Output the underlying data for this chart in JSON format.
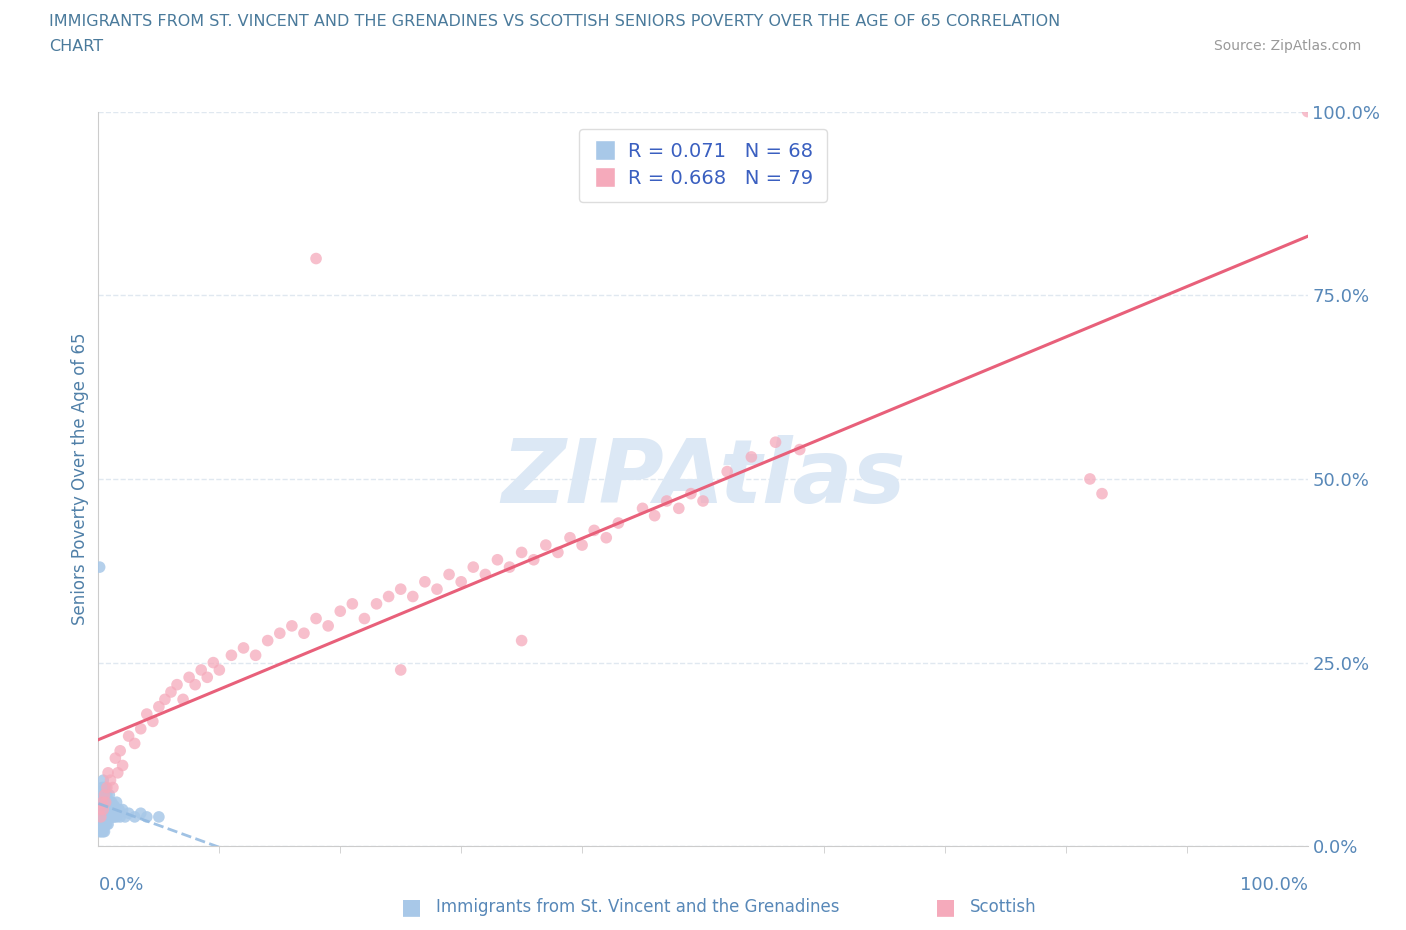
{
  "title_line1": "IMMIGRANTS FROM ST. VINCENT AND THE GRENADINES VS SCOTTISH SENIORS POVERTY OVER THE AGE OF 65 CORRELATION",
  "title_line2": "CHART",
  "source_text": "Source: ZipAtlas.com",
  "legend_label1": "Immigrants from St. Vincent and the Grenadines",
  "legend_label2": "Scottish",
  "R1": 0.071,
  "N1": 68,
  "R2": 0.668,
  "N2": 79,
  "color_blue": "#a8c8e8",
  "color_pink": "#f5aabb",
  "line_blue_color": "#90b8e0",
  "line_pink_color": "#e8607a",
  "watermark_color": "#dce8f5",
  "title_color": "#4a7a9b",
  "legend_text_color": "#3a5fc0",
  "axis_label_color": "#5080a8",
  "tick_label_color": "#5888b8",
  "background_color": "#ffffff",
  "grid_color": "#e0e8f0",
  "ylabel": "Seniors Poverty Over the Age of 65",
  "blue_x": [
    0.001,
    0.001,
    0.001,
    0.001,
    0.002,
    0.002,
    0.002,
    0.002,
    0.002,
    0.003,
    0.003,
    0.003,
    0.003,
    0.003,
    0.003,
    0.004,
    0.004,
    0.004,
    0.004,
    0.004,
    0.004,
    0.004,
    0.005,
    0.005,
    0.005,
    0.005,
    0.005,
    0.005,
    0.006,
    0.006,
    0.006,
    0.006,
    0.006,
    0.007,
    0.007,
    0.007,
    0.007,
    0.007,
    0.008,
    0.008,
    0.008,
    0.008,
    0.009,
    0.009,
    0.009,
    0.009,
    0.01,
    0.01,
    0.01,
    0.011,
    0.011,
    0.011,
    0.012,
    0.012,
    0.013,
    0.013,
    0.014,
    0.015,
    0.015,
    0.017,
    0.018,
    0.02,
    0.022,
    0.025,
    0.03,
    0.035,
    0.04,
    0.05
  ],
  "blue_y": [
    0.38,
    0.05,
    0.03,
    0.02,
    0.06,
    0.04,
    0.05,
    0.03,
    0.02,
    0.08,
    0.06,
    0.05,
    0.04,
    0.03,
    0.02,
    0.09,
    0.07,
    0.06,
    0.05,
    0.04,
    0.03,
    0.02,
    0.08,
    0.07,
    0.06,
    0.05,
    0.04,
    0.02,
    0.08,
    0.06,
    0.05,
    0.04,
    0.03,
    0.07,
    0.06,
    0.05,
    0.04,
    0.03,
    0.06,
    0.05,
    0.04,
    0.03,
    0.07,
    0.06,
    0.05,
    0.04,
    0.06,
    0.05,
    0.04,
    0.06,
    0.05,
    0.04,
    0.055,
    0.04,
    0.055,
    0.04,
    0.05,
    0.06,
    0.04,
    0.05,
    0.04,
    0.05,
    0.04,
    0.045,
    0.04,
    0.045,
    0.04,
    0.04
  ],
  "pink_x": [
    0.001,
    0.002,
    0.003,
    0.004,
    0.005,
    0.006,
    0.007,
    0.008,
    0.01,
    0.012,
    0.014,
    0.016,
    0.018,
    0.02,
    0.025,
    0.03,
    0.035,
    0.04,
    0.045,
    0.05,
    0.055,
    0.06,
    0.065,
    0.07,
    0.075,
    0.08,
    0.085,
    0.09,
    0.095,
    0.1,
    0.11,
    0.12,
    0.13,
    0.14,
    0.15,
    0.16,
    0.17,
    0.18,
    0.19,
    0.2,
    0.21,
    0.22,
    0.23,
    0.24,
    0.25,
    0.26,
    0.27,
    0.28,
    0.29,
    0.3,
    0.31,
    0.32,
    0.33,
    0.34,
    0.35,
    0.36,
    0.37,
    0.38,
    0.39,
    0.4,
    0.41,
    0.42,
    0.43,
    0.45,
    0.46,
    0.47,
    0.48,
    0.49,
    0.5,
    0.52,
    0.54,
    0.56,
    0.58,
    0.82,
    0.83,
    1.0,
    0.35,
    0.25,
    0.18
  ],
  "pink_y": [
    0.05,
    0.04,
    0.06,
    0.05,
    0.07,
    0.06,
    0.08,
    0.1,
    0.09,
    0.08,
    0.12,
    0.1,
    0.13,
    0.11,
    0.15,
    0.14,
    0.16,
    0.18,
    0.17,
    0.19,
    0.2,
    0.21,
    0.22,
    0.2,
    0.23,
    0.22,
    0.24,
    0.23,
    0.25,
    0.24,
    0.26,
    0.27,
    0.26,
    0.28,
    0.29,
    0.3,
    0.29,
    0.31,
    0.3,
    0.32,
    0.33,
    0.31,
    0.33,
    0.34,
    0.35,
    0.34,
    0.36,
    0.35,
    0.37,
    0.36,
    0.38,
    0.37,
    0.39,
    0.38,
    0.4,
    0.39,
    0.41,
    0.4,
    0.42,
    0.41,
    0.43,
    0.42,
    0.44,
    0.46,
    0.45,
    0.47,
    0.46,
    0.48,
    0.47,
    0.51,
    0.53,
    0.55,
    0.54,
    0.5,
    0.48,
    1.0,
    0.28,
    0.24,
    0.8
  ]
}
